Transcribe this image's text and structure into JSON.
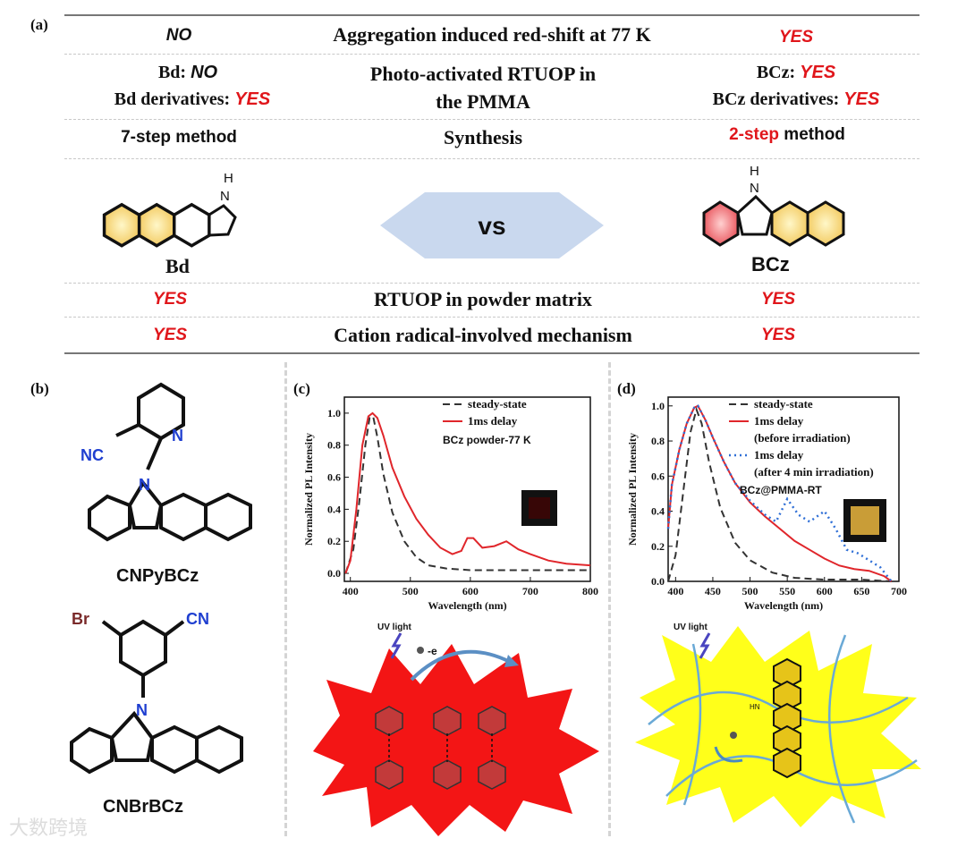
{
  "panel_a": {
    "label": "(a)",
    "rows": [
      {
        "left": "NO",
        "center": "Aggregation induced red-shift at 77 K",
        "right": "YES"
      },
      {
        "left_prefix_1": "Bd:",
        "left_value_1": "NO",
        "left_prefix_2": "Bd derivatives:",
        "left_value_2": "YES",
        "center_1": "Photo-activated RTUOP in",
        "center_2": "the PMMA",
        "right_prefix_1": "BCz:",
        "right_value_1": "YES",
        "right_prefix_2": "BCz derivatives:",
        "right_value_2": "YES"
      },
      {
        "left": "7-step method",
        "center": "Synthesis",
        "right_red": "2-step",
        "right_rest": " method"
      },
      {
        "left_mol": "Bd",
        "center": "vs",
        "right_mol": "BCz",
        "nh_left": "H\nN",
        "nh_right": "H\nN"
      },
      {
        "left": "YES",
        "center": "RTUOP in powder matrix",
        "right": "YES"
      },
      {
        "left": "YES",
        "center": "Cation radical-involved mechanism",
        "right": "YES"
      }
    ]
  },
  "panel_b": {
    "label": "(b)",
    "mol1": "CNPyBCz",
    "mol2": "CNBrBCz",
    "atoms": {
      "N": "N",
      "NC": "NC",
      "Br": "Br",
      "CN": "CN"
    }
  },
  "panel_c": {
    "label": "(c)",
    "ylabel": "Normalized PL Intensity",
    "xlabel": "Wavelength (nm)",
    "annotation": "BCz powder-77 K",
    "legend": [
      "steady-state",
      "1ms delay"
    ],
    "uv_label": "UV light",
    "electron_label": "-e",
    "colors": {
      "steady": "#333333",
      "delay": "#e0262b"
    }
  },
  "panel_d": {
    "label": "(d)",
    "ylabel": "Normalized PL Intensity",
    "xlabel": "Wavelength (nm)",
    "annotation": "BCz@PMMA-RT",
    "legend": [
      "steady-state",
      "1ms delay",
      "(before irradiation)",
      "1ms delay",
      "(after 4 min irradiation)"
    ],
    "uv_label": "UV light",
    "hn_label": "HN",
    "colors": {
      "steady": "#333333",
      "before": "#e0262b",
      "after": "#2f6fd6"
    }
  },
  "watermark": "大数跨境",
  "chart_data": [
    {
      "type": "line",
      "xlabel": "Wavelength (nm)",
      "ylabel": "Normalized PL Intensity",
      "xlim": [
        390,
        800
      ],
      "ylim": [
        -0.05,
        1.1
      ],
      "xticks": [
        400,
        500,
        600,
        700,
        800
      ],
      "yticks": [
        0.0,
        0.2,
        0.4,
        0.6,
        0.8,
        1.0
      ],
      "legend_position": "top-right",
      "series": [
        {
          "name": "steady-state",
          "style": "dashed",
          "x": [
            392,
            405,
            415,
            425,
            432,
            438,
            445,
            455,
            470,
            490,
            510,
            530,
            560,
            600,
            650,
            700,
            750,
            800
          ],
          "y": [
            0.0,
            0.15,
            0.45,
            0.8,
            0.97,
            0.98,
            0.85,
            0.62,
            0.38,
            0.2,
            0.1,
            0.05,
            0.03,
            0.02,
            0.02,
            0.02,
            0.02,
            0.02
          ]
        },
        {
          "name": "1ms delay",
          "style": "solid",
          "x": [
            392,
            400,
            410,
            420,
            430,
            437,
            445,
            455,
            470,
            490,
            510,
            530,
            550,
            570,
            585,
            595,
            605,
            620,
            640,
            660,
            680,
            700,
            730,
            760,
            800
          ],
          "y": [
            0.0,
            0.08,
            0.4,
            0.8,
            0.98,
            1.0,
            0.97,
            0.86,
            0.66,
            0.48,
            0.34,
            0.24,
            0.16,
            0.12,
            0.14,
            0.22,
            0.22,
            0.16,
            0.17,
            0.2,
            0.15,
            0.12,
            0.08,
            0.06,
            0.05
          ]
        }
      ]
    },
    {
      "type": "line",
      "xlabel": "Wavelength (nm)",
      "ylabel": "Normalized PL Intensity",
      "xlim": [
        390,
        700
      ],
      "ylim": [
        0.0,
        1.05
      ],
      "xticks": [
        400,
        450,
        500,
        550,
        600,
        650,
        700
      ],
      "yticks": [
        0.0,
        0.2,
        0.4,
        0.6,
        0.8,
        1.0
      ],
      "legend_position": "top-right",
      "series": [
        {
          "name": "steady-state",
          "style": "dashed",
          "x": [
            390,
            400,
            410,
            420,
            428,
            435,
            445,
            460,
            480,
            500,
            530,
            560,
            600,
            650,
            690
          ],
          "y": [
            0.0,
            0.15,
            0.5,
            0.85,
            0.98,
            0.9,
            0.68,
            0.42,
            0.22,
            0.12,
            0.05,
            0.02,
            0.01,
            0.01,
            0.0
          ]
        },
        {
          "name": "1ms delay (before irradiation)",
          "style": "solid",
          "x": [
            390,
            395,
            405,
            415,
            425,
            430,
            440,
            450,
            465,
            480,
            500,
            520,
            540,
            560,
            580,
            600,
            620,
            640,
            660,
            680,
            690
          ],
          "y": [
            0.3,
            0.55,
            0.75,
            0.9,
            0.99,
            1.0,
            0.92,
            0.82,
            0.68,
            0.56,
            0.45,
            0.37,
            0.3,
            0.23,
            0.18,
            0.13,
            0.09,
            0.07,
            0.06,
            0.03,
            0.0
          ]
        },
        {
          "name": "1ms delay (after 4 min irradiation)",
          "style": "dotted",
          "x": [
            390,
            395,
            405,
            415,
            425,
            430,
            440,
            450,
            465,
            480,
            500,
            520,
            535,
            550,
            565,
            580,
            600,
            615,
            630,
            645,
            660,
            675,
            690
          ],
          "y": [
            0.3,
            0.55,
            0.75,
            0.9,
            0.99,
            1.0,
            0.92,
            0.82,
            0.68,
            0.56,
            0.46,
            0.38,
            0.34,
            0.47,
            0.38,
            0.34,
            0.4,
            0.3,
            0.18,
            0.16,
            0.12,
            0.08,
            0.0
          ]
        }
      ]
    }
  ]
}
